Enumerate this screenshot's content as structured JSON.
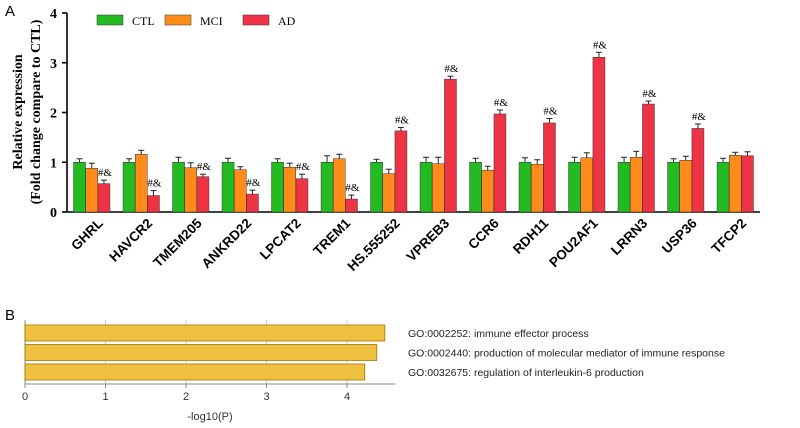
{
  "panel_labels": {
    "a": "A",
    "b": "B"
  },
  "colors": {
    "CTL": "#22bb22",
    "MCI": "#ff8c1a",
    "AD": "#ee3344",
    "go_bar": "#f0c040",
    "go_bar_edge": "#a07800"
  },
  "chart_data": [
    {
      "type": "bar",
      "panel": "A",
      "ylabel": "Relative expression",
      "ylabel2": "(Fold change compare to CTL)",
      "ylim": [
        0,
        4
      ],
      "yticks": [
        "0",
        "1",
        "2",
        "3",
        "4"
      ],
      "legend_position": "top-left",
      "categories": [
        "GHRL",
        "HAVCR2",
        "TMEM205",
        "ANKRD22",
        "LPCAT2",
        "TREM1",
        "HS.555252",
        "VPREB3",
        "CCR6",
        "RDH11",
        "POU2AF1",
        "LRRN3",
        "USP36",
        "TFCP2"
      ],
      "series": [
        {
          "name": "CTL",
          "values": [
            1.0,
            1.0,
            1.0,
            1.0,
            1.0,
            1.0,
            1.0,
            1.0,
            1.0,
            1.0,
            1.0,
            1.0,
            1.0,
            1.0
          ],
          "errors": [
            0.07,
            0.07,
            0.1,
            0.08,
            0.07,
            0.13,
            0.06,
            0.1,
            0.08,
            0.09,
            0.1,
            0.1,
            0.07,
            0.08
          ]
        },
        {
          "name": "MCI",
          "values": [
            0.88,
            1.16,
            0.89,
            0.85,
            0.9,
            1.07,
            0.77,
            0.97,
            0.84,
            0.96,
            1.09,
            1.1,
            1.04,
            1.14
          ],
          "errors": [
            0.1,
            0.08,
            0.1,
            0.06,
            0.08,
            0.09,
            0.09,
            0.13,
            0.08,
            0.09,
            0.1,
            0.12,
            0.08,
            0.06
          ]
        },
        {
          "name": "AD",
          "values": [
            0.57,
            0.33,
            0.71,
            0.36,
            0.67,
            0.26,
            1.63,
            2.67,
            1.97,
            1.79,
            3.11,
            2.17,
            1.68,
            1.13
          ],
          "errors": [
            0.07,
            0.1,
            0.05,
            0.08,
            0.09,
            0.08,
            0.07,
            0.06,
            0.08,
            0.09,
            0.1,
            0.06,
            0.09,
            0.08
          ]
        }
      ],
      "annotations": [
        "#&",
        "#&",
        "#&",
        "#&",
        "#&",
        "#&",
        "#&",
        "#&",
        "#&",
        "#&",
        "#&",
        "#&",
        "#&",
        ""
      ]
    },
    {
      "type": "bar",
      "panel": "B",
      "orientation": "horizontal",
      "xlabel": "-log10(P)",
      "xlim": [
        0,
        4.6
      ],
      "xticks": [
        "0",
        "1",
        "2",
        "3",
        "4"
      ],
      "grid": true,
      "categories": [
        "GO:0002252: immune effector process",
        "GO:0002440: production of molecular mediator of immune response",
        "GO:0032675: regulation of interleukin-6 production"
      ],
      "values": [
        4.47,
        4.37,
        4.22
      ]
    }
  ]
}
